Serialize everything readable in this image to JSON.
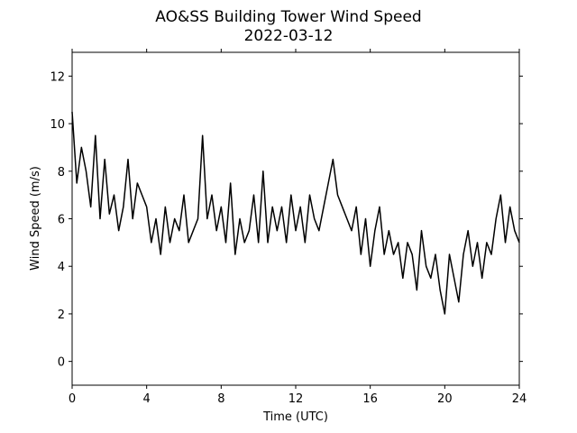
{
  "chart_data": {
    "type": "line",
    "title": "AO&SS Building Tower Wind Speed",
    "subtitle": "2022-03-12",
    "xlabel": "Time (UTC)",
    "ylabel": "Wind Speed (m/s)",
    "color": "#000000",
    "xlim": [
      0,
      24
    ],
    "xticks": [
      0,
      4,
      8,
      12,
      16,
      20,
      24
    ],
    "ylim": [
      -1,
      13
    ],
    "yticks": [
      0,
      2,
      4,
      6,
      8,
      10,
      12
    ],
    "x": [
      0,
      0.25,
      0.5,
      0.75,
      1,
      1.25,
      1.5,
      1.75,
      2,
      2.25,
      2.5,
      2.75,
      3,
      3.25,
      3.5,
      3.75,
      4,
      4.25,
      4.5,
      4.75,
      5,
      5.25,
      5.5,
      5.75,
      6,
      6.25,
      6.5,
      6.75,
      7,
      7.25,
      7.5,
      7.75,
      8,
      8.25,
      8.5,
      8.75,
      9,
      9.25,
      9.5,
      9.75,
      10,
      10.25,
      10.5,
      10.75,
      11,
      11.25,
      11.5,
      11.75,
      12,
      12.25,
      12.5,
      12.75,
      13,
      13.25,
      13.5,
      13.75,
      14,
      14.25,
      14.5,
      14.75,
      15,
      15.25,
      15.5,
      15.75,
      16,
      16.25,
      16.5,
      16.75,
      17,
      17.25,
      17.5,
      17.75,
      18,
      18.25,
      18.5,
      18.75,
      19,
      19.25,
      19.5,
      19.75,
      20,
      20.25,
      20.5,
      20.75,
      21,
      21.25,
      21.5,
      21.75,
      22,
      22.25,
      22.5,
      22.75,
      23,
      23.25,
      23.5,
      23.75,
      24
    ],
    "values": [
      10.5,
      7.5,
      9,
      8,
      6.5,
      9.5,
      6,
      8.5,
      6.2,
      7,
      5.5,
      6.5,
      8.5,
      6,
      7.5,
      7,
      6.5,
      5,
      6,
      4.5,
      6.5,
      5,
      6,
      5.5,
      7,
      5,
      5.5,
      6,
      9.5,
      6,
      7,
      5.5,
      6.5,
      5,
      7.5,
      4.5,
      6,
      5,
      5.5,
      7,
      5,
      8,
      5,
      6.5,
      5.5,
      6.5,
      5,
      7,
      5.5,
      6.5,
      5,
      7,
      6,
      5.5,
      6.5,
      7.5,
      8.5,
      7,
      6.5,
      6,
      5.5,
      6.5,
      4.5,
      6,
      4,
      5.5,
      6.5,
      4.5,
      5.5,
      4.5,
      5,
      3.5,
      5,
      4.5,
      3,
      5.5,
      4,
      3.5,
      4.5,
      3,
      2,
      4.5,
      3.5,
      2.5,
      4.5,
      5.5,
      4,
      5,
      3.5,
      5,
      4.5,
      6,
      7,
      5,
      6.5,
      5.5,
      5
    ]
  }
}
